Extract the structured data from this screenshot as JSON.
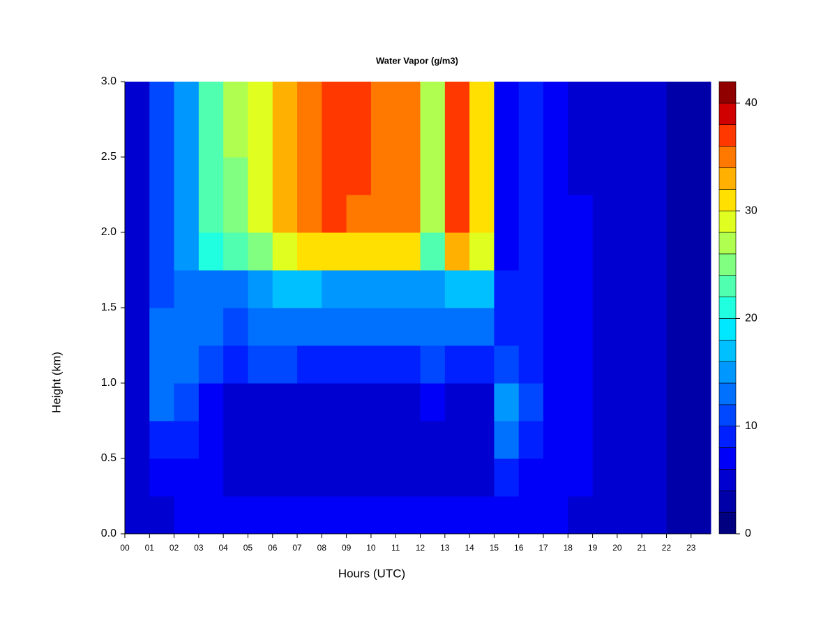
{
  "chart_data": {
    "type": "heatmap",
    "title": "Water Vapor (g/m3)",
    "x_label": "Hours (UTC)",
    "y_label": "Height (km)",
    "xlim": [
      0,
      23.8
    ],
    "ylim": [
      0,
      3
    ],
    "xticks": [
      {
        "value": 0,
        "label": "00"
      },
      {
        "value": 1,
        "label": "01"
      },
      {
        "value": 2,
        "label": "02"
      },
      {
        "value": 3,
        "label": "03"
      },
      {
        "value": 4,
        "label": "04"
      },
      {
        "value": 5,
        "label": "05"
      },
      {
        "value": 6,
        "label": "06"
      },
      {
        "value": 7,
        "label": "07"
      },
      {
        "value": 8,
        "label": "08"
      },
      {
        "value": 9,
        "label": "09"
      },
      {
        "value": 10,
        "label": "10"
      },
      {
        "value": 11,
        "label": "11"
      },
      {
        "value": 12,
        "label": "12"
      },
      {
        "value": 13,
        "label": "13"
      },
      {
        "value": 14,
        "label": "14"
      },
      {
        "value": 15,
        "label": "15"
      },
      {
        "value": 16,
        "label": "16"
      },
      {
        "value": 17,
        "label": "17"
      },
      {
        "value": 18,
        "label": "18"
      },
      {
        "value": 19,
        "label": "19"
      },
      {
        "value": 20,
        "label": "20"
      },
      {
        "value": 21,
        "label": "21"
      },
      {
        "value": 22,
        "label": "22"
      },
      {
        "value": 23,
        "label": "23"
      }
    ],
    "yticks": [
      {
        "value": 0,
        "label": "0.0"
      },
      0.5,
      {
        "value": 1,
        "label": "1.0"
      },
      1.5,
      {
        "value": 2,
        "label": "2.0"
      },
      2.5,
      {
        "value": 3,
        "label": "3.0"
      }
    ],
    "x_edges": [
      0,
      1,
      2,
      3,
      4,
      5,
      6,
      7,
      8,
      9,
      10,
      11,
      12,
      13,
      14,
      15,
      16,
      17,
      18,
      19,
      20,
      21,
      22,
      23,
      23.8
    ],
    "y_edges": [
      0,
      0.25,
      0.5,
      0.75,
      1,
      1.25,
      1.5,
      1.75,
      2,
      2.25,
      2.5,
      2.75,
      3
    ],
    "z": [
      [
        4,
        5,
        6,
        6,
        6,
        6,
        7,
        7,
        7,
        7,
        7,
        7,
        7,
        6,
        6,
        6,
        6,
        6,
        5,
        5,
        5,
        5,
        3,
        3
      ],
      [
        5,
        6,
        7,
        6,
        5,
        5,
        5,
        5,
        5,
        5,
        5,
        5,
        5,
        5,
        5,
        8,
        7,
        6,
        6,
        5,
        5,
        5,
        3,
        3
      ],
      [
        5,
        9,
        8,
        6,
        5,
        4,
        4,
        4,
        4,
        4,
        4,
        4,
        5,
        4,
        4,
        12,
        9,
        7,
        6,
        5,
        5,
        5,
        3,
        3
      ],
      [
        5,
        12,
        10,
        6,
        5,
        5,
        5,
        5,
        5,
        5,
        5,
        5,
        6,
        5,
        5,
        14,
        11,
        7,
        6,
        5,
        5,
        5,
        3,
        3
      ],
      [
        5,
        12,
        12,
        10,
        9,
        10,
        10,
        9,
        9,
        9,
        9,
        9,
        10,
        9,
        9,
        10,
        9,
        7,
        6,
        5,
        5,
        5,
        3,
        3
      ],
      [
        5,
        12,
        13,
        12,
        11,
        12,
        13,
        13,
        13,
        13,
        12,
        12,
        13,
        12,
        12,
        9,
        8,
        7,
        6,
        5,
        5,
        5,
        3,
        3
      ],
      [
        5,
        11,
        13,
        13,
        12,
        14,
        16,
        16,
        15,
        15,
        15,
        15,
        14,
        16,
        17,
        8,
        8,
        7,
        6,
        5,
        5,
        5,
        3,
        3
      ],
      [
        5,
        11,
        14,
        20,
        22,
        25,
        28,
        30,
        31,
        30,
        30,
        30,
        22,
        32,
        28,
        7,
        8,
        6,
        6,
        5,
        5,
        5,
        3,
        3
      ],
      [
        5,
        11,
        14,
        22,
        24,
        28,
        33,
        35,
        36,
        35,
        35,
        35,
        26,
        37,
        30,
        7,
        8,
        6,
        6,
        5,
        5,
        5,
        3,
        3
      ],
      [
        5,
        11,
        14,
        23,
        25,
        29,
        33,
        35,
        36,
        36,
        35,
        35,
        27,
        37,
        30,
        7,
        8,
        6,
        5,
        5,
        5,
        5,
        3,
        3
      ],
      [
        5,
        11,
        14,
        23,
        26,
        29,
        33,
        35,
        36,
        36,
        35,
        35,
        27,
        37,
        30,
        7,
        8,
        6,
        5,
        5,
        5,
        4,
        3,
        3
      ],
      [
        5,
        11,
        14,
        23,
        26,
        29,
        33,
        35,
        36,
        36,
        35,
        35,
        27,
        37,
        30,
        7,
        8,
        6,
        5,
        5,
        5,
        4,
        3,
        3
      ]
    ],
    "clim": [
      0,
      42
    ],
    "levels": [
      0,
      2,
      4,
      6,
      8,
      10,
      12,
      14,
      16,
      18,
      20,
      22,
      24,
      26,
      28,
      30,
      32,
      34,
      36,
      38,
      40,
      42
    ],
    "colors": [
      "#000080",
      "#0000A8",
      "#0000D0",
      "#0000F8",
      "#0020FF",
      "#0048FF",
      "#0070FF",
      "#0098FF",
      "#00C0FF",
      "#00E8FF",
      "#20FFE0",
      "#50FFB0",
      "#80FF80",
      "#B0FF50",
      "#E0FF20",
      "#FFE000",
      "#FFB000",
      "#FF7800",
      "#FF3800",
      "#D00000",
      "#900000"
    ],
    "colorbar_ticks": [
      0,
      10,
      20,
      30,
      40
    ]
  }
}
